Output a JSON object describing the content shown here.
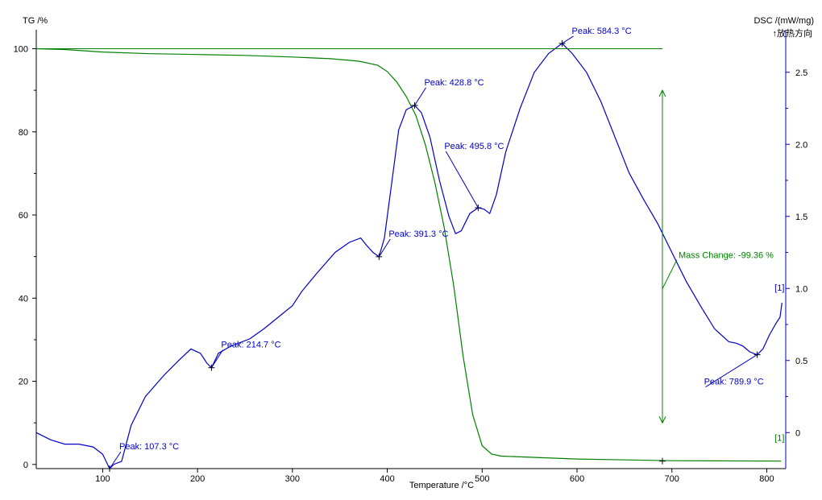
{
  "chart_data": {
    "type": "line",
    "xlabel": "Temperature /°C",
    "ylabel_left": "TG /%",
    "ylabel_right": "DSC /(mW/mg)",
    "exo_label": "↑放热方向",
    "xlim": [
      30,
      820
    ],
    "ylim_left": [
      -1,
      103
    ],
    "ylim_right": [
      -0.25,
      2.75
    ],
    "x_ticks": [
      100,
      200,
      300,
      400,
      500,
      600,
      700,
      800
    ],
    "y_ticks_left": [
      0,
      20,
      40,
      60,
      80,
      100
    ],
    "y_ticks_right": [
      0,
      0.5,
      1.0,
      1.5,
      2.0,
      2.5
    ],
    "y_ticks_right_labels": [
      "0",
      "0.5",
      "1.0",
      "1.5",
      "2.0",
      "2.5"
    ],
    "colors": {
      "tg": "#008000",
      "dsc": "#0000c8",
      "axis": "#000000"
    },
    "series": [
      {
        "key": "tg",
        "axis": "left",
        "x": [
          30,
          60,
          100,
          150,
          200,
          250,
          300,
          340,
          370,
          390,
          400,
          410,
          420,
          430,
          440,
          450,
          460,
          470,
          480,
          490,
          500,
          510,
          520,
          600,
          700,
          815
        ],
        "y": [
          100,
          99.8,
          99.2,
          98.8,
          98.6,
          98.4,
          98.0,
          97.6,
          97.0,
          96.0,
          94.5,
          92.0,
          88.5,
          84.0,
          77.0,
          68.0,
          57.0,
          43.0,
          26.0,
          12.0,
          4.5,
          2.5,
          2.0,
          1.3,
          0.9,
          0.8
        ]
      },
      {
        "key": "dsc",
        "axis": "right",
        "x": [
          30,
          45,
          60,
          75,
          90,
          100,
          107.3,
          112,
          120,
          130,
          145,
          165,
          180,
          193,
          203,
          210,
          214.7,
          222,
          235,
          255,
          270,
          285,
          300,
          310,
          325,
          345,
          360,
          372,
          378,
          385,
          391.3,
          397,
          405,
          412,
          420,
          428.8,
          436,
          445,
          455,
          465,
          472,
          478,
          487,
          495.8,
          502,
          508,
          515,
          525,
          540,
          555,
          570,
          584.3,
          595,
          610,
          625,
          640,
          655,
          670,
          685,
          700,
          715,
          730,
          745,
          760,
          768,
          775,
          782,
          789.9,
          796,
          803,
          810,
          814,
          815,
          816
        ],
        "y": [
          0,
          -0.05,
          -0.08,
          -0.08,
          -0.1,
          -0.15,
          -0.25,
          -0.22,
          -0.2,
          0.05,
          0.25,
          0.4,
          0.5,
          0.58,
          0.55,
          0.48,
          0.45,
          0.55,
          0.6,
          0.65,
          0.72,
          0.8,
          0.88,
          0.98,
          1.1,
          1.25,
          1.32,
          1.35,
          1.3,
          1.25,
          1.22,
          1.35,
          1.75,
          2.1,
          2.24,
          2.27,
          2.22,
          2.05,
          1.75,
          1.5,
          1.38,
          1.4,
          1.52,
          1.56,
          1.55,
          1.52,
          1.65,
          1.95,
          2.25,
          2.5,
          2.63,
          2.7,
          2.63,
          2.5,
          2.3,
          2.05,
          1.8,
          1.62,
          1.45,
          1.25,
          1.05,
          0.88,
          0.72,
          0.63,
          0.62,
          0.6,
          0.56,
          0.54,
          0.58,
          0.68,
          0.76,
          0.8,
          0.85,
          0.9
        ]
      }
    ],
    "annotations": [
      {
        "text": "Peak: 107.3 °C",
        "x": 107.3,
        "y": -0.25,
        "dx": 12,
        "dy": -24,
        "anchor": "start"
      },
      {
        "text": "Peak: 214.7 °C",
        "x": 214.7,
        "y": 0.45,
        "dx": 12,
        "dy": -25,
        "anchor": "start"
      },
      {
        "text": "Peak: 391.3 °C",
        "x": 391.3,
        "y": 1.22,
        "dx": 12,
        "dy": -25,
        "anchor": "start"
      },
      {
        "text": "Peak: 428.8 °C",
        "x": 428.8,
        "y": 2.27,
        "dx": 12,
        "dy": -25,
        "anchor": "start"
      },
      {
        "text": "Peak: 495.8 °C",
        "x": 495.8,
        "y": 1.56,
        "dx": -42,
        "dy": -73,
        "anchor": "start"
      },
      {
        "text": "Peak: 584.3 °C",
        "x": 584.3,
        "y": 2.7,
        "dx": 12,
        "dy": -12,
        "anchor": "start"
      },
      {
        "text": "Peak: 789.9 °C",
        "x": 789.9,
        "y": 0.54,
        "dx": -66,
        "dy": 37,
        "anchor": "start"
      }
    ],
    "mass_change": {
      "text": "Mass Change: -99.36 %",
      "x": 690,
      "y_from": 90,
      "y_to": 10
    },
    "series_tags": [
      {
        "text": "[1]",
        "x": 816,
        "y": 0.95,
        "axis": "right"
      },
      {
        "text": "[1]",
        "x": 816,
        "y": 4.5,
        "axis": "left"
      }
    ]
  }
}
